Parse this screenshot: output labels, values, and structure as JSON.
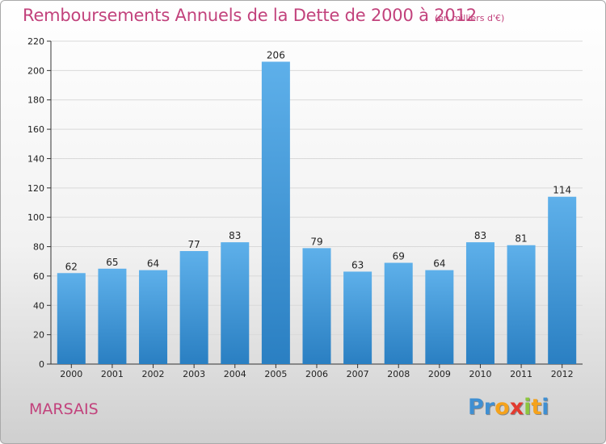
{
  "chart_data": {
    "type": "bar",
    "title": "Remboursements Annuels de la Dette de 2000 à 2012",
    "subtitle": "(en milliers d'€)",
    "xlabel": "",
    "ylabel": "",
    "categories": [
      "2000",
      "2001",
      "2002",
      "2003",
      "2004",
      "2005",
      "2006",
      "2007",
      "2008",
      "2009",
      "2010",
      "2011",
      "2012"
    ],
    "values": [
      62,
      65,
      64,
      77,
      83,
      206,
      79,
      63,
      69,
      64,
      83,
      81,
      114
    ],
    "ylim": [
      0,
      220
    ],
    "yticks": [
      0,
      20,
      40,
      60,
      80,
      100,
      120,
      140,
      160,
      180,
      200,
      220
    ],
    "grid": true,
    "legend": "none",
    "bar_color": "#3d94d6",
    "value_labels": true
  },
  "footer": {
    "commune": "MARSAIS",
    "logo_letters": [
      "P",
      "r",
      "o",
      "x",
      "i",
      "t",
      "i"
    ],
    "logo_colors": [
      "#3f8fd2",
      "#3f8fd2",
      "#f5a21b",
      "#e23a2f",
      "#8cc63e",
      "#f5a21b",
      "#3f8fd2"
    ]
  },
  "colors": {
    "title": "#c2427c",
    "grid": "#d9d9d9"
  }
}
